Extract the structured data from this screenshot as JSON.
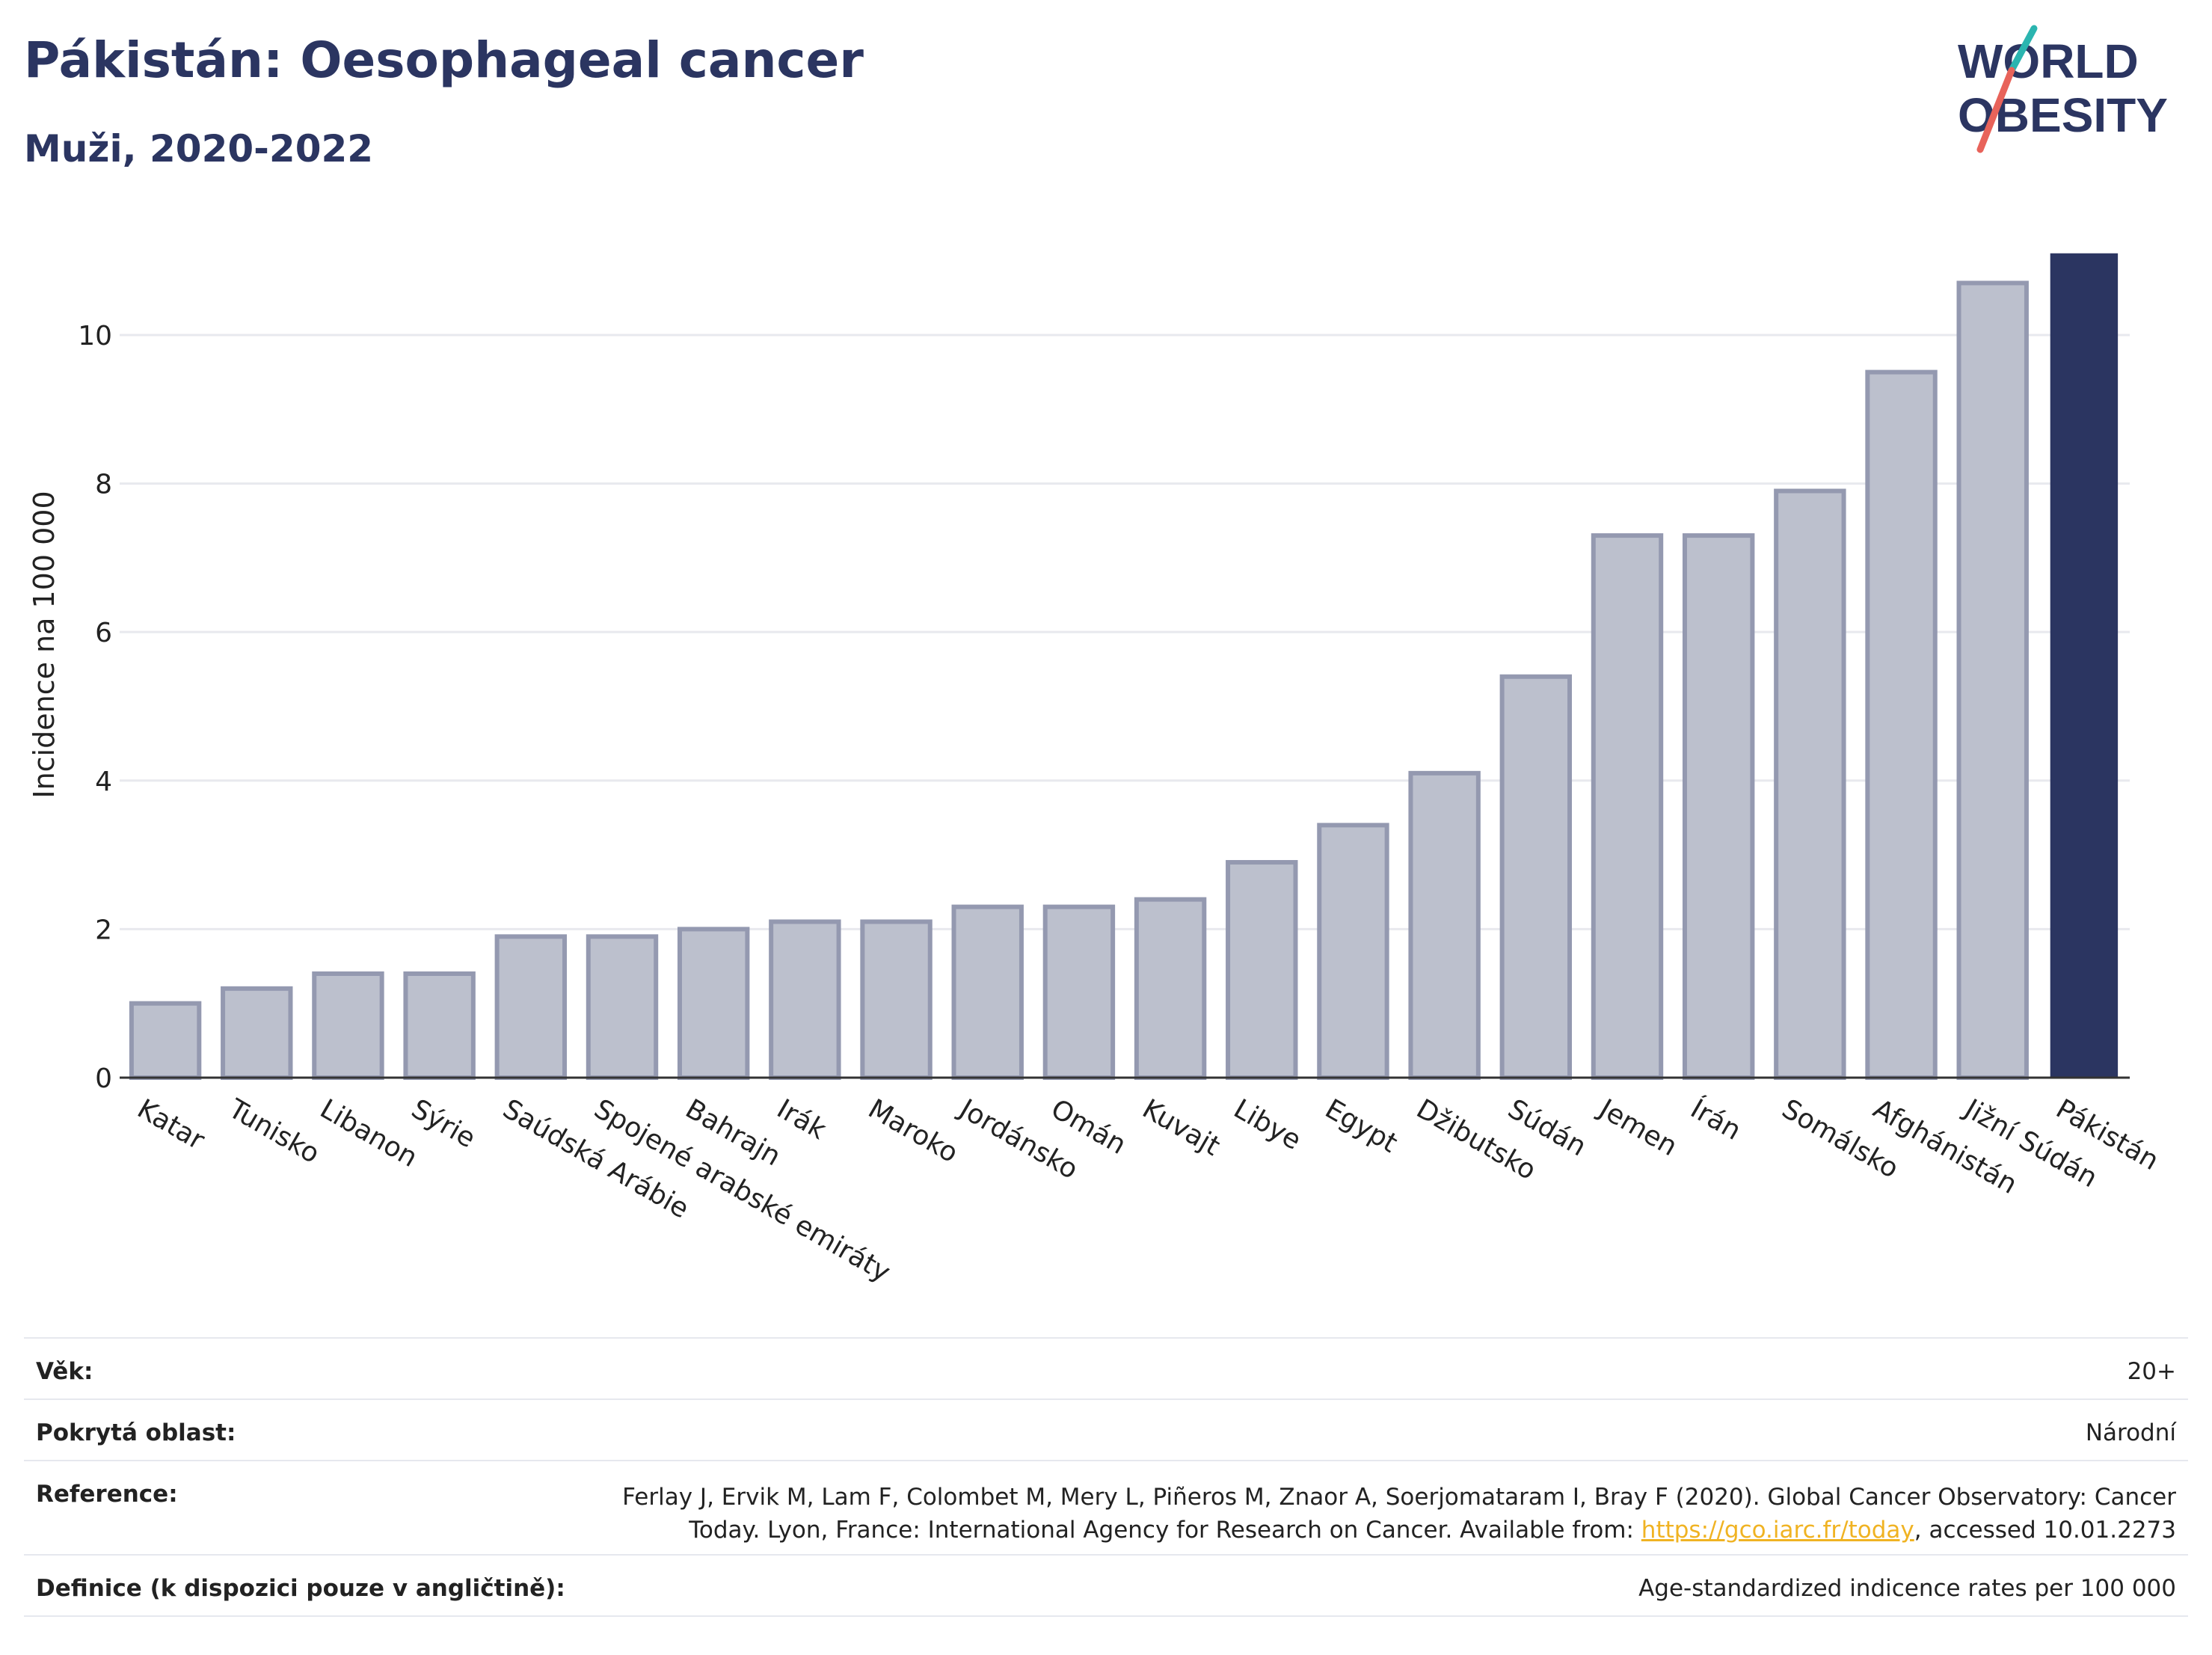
{
  "header": {
    "title": "Pákistán: Oesophageal cancer",
    "subtitle": "Muži, 2020-2022"
  },
  "logo": {
    "line1": "WORLD",
    "line2": "OBESITY",
    "accent_teal": "#2bb5b0",
    "accent_red": "#e8635a",
    "color": "#2b3561"
  },
  "chart_data": {
    "type": "bar",
    "ylabel": "Incidence na 100 000",
    "ylim": [
      0,
      11.5
    ],
    "yticks": [
      0,
      2,
      4,
      6,
      8,
      10
    ],
    "grid": true,
    "categories": [
      "Katar",
      "Tunisko",
      "Libanon",
      "Sýrie",
      "Saúdská Arábie",
      "Spojené arabské emiráty",
      "Bahrajn",
      "Irák",
      "Maroko",
      "Jordánsko",
      "Omán",
      "Kuvajt",
      "Libye",
      "Egypt",
      "Džibutsko",
      "Súdán",
      "Jemen",
      "Írán",
      "Somálsko",
      "Afghánistán",
      "Jižní Súdán",
      "Pákistán"
    ],
    "values": [
      1.0,
      1.2,
      1.4,
      1.4,
      1.9,
      1.9,
      2.0,
      2.1,
      2.1,
      2.3,
      2.3,
      2.4,
      2.9,
      3.4,
      4.1,
      5.4,
      7.3,
      7.3,
      7.9,
      9.5,
      10.7,
      11.1
    ],
    "highlight": "Pákistán",
    "colors": {
      "bar": "#bcc0cd",
      "bar_border": "#9499b0",
      "highlight": "#2b3561",
      "grid": "#e8e9ee",
      "axis": "#333333"
    }
  },
  "info": {
    "age": {
      "label": "Věk:",
      "value": "20+"
    },
    "coverage": {
      "label": "Pokrytá oblast:",
      "value": "Národní"
    },
    "reference": {
      "label": "Reference:",
      "line1": "Ferlay J, Ervik M, Lam F, Colombet M, Mery L, Piñeros M, Znaor A, Soerjomataram I, Bray F (2020). Global Cancer Observatory: Cancer",
      "line2_pre": "Today. Lyon, France: International Agency for Research on Cancer. Available from: ",
      "link": "https://gco.iarc.fr/today",
      "line2_post": ", accessed 10.01.2273"
    },
    "definition": {
      "label": "Definice (k dispozici pouze v angličtině):",
      "value": "Age-standardized indicence rates per 100 000"
    }
  }
}
